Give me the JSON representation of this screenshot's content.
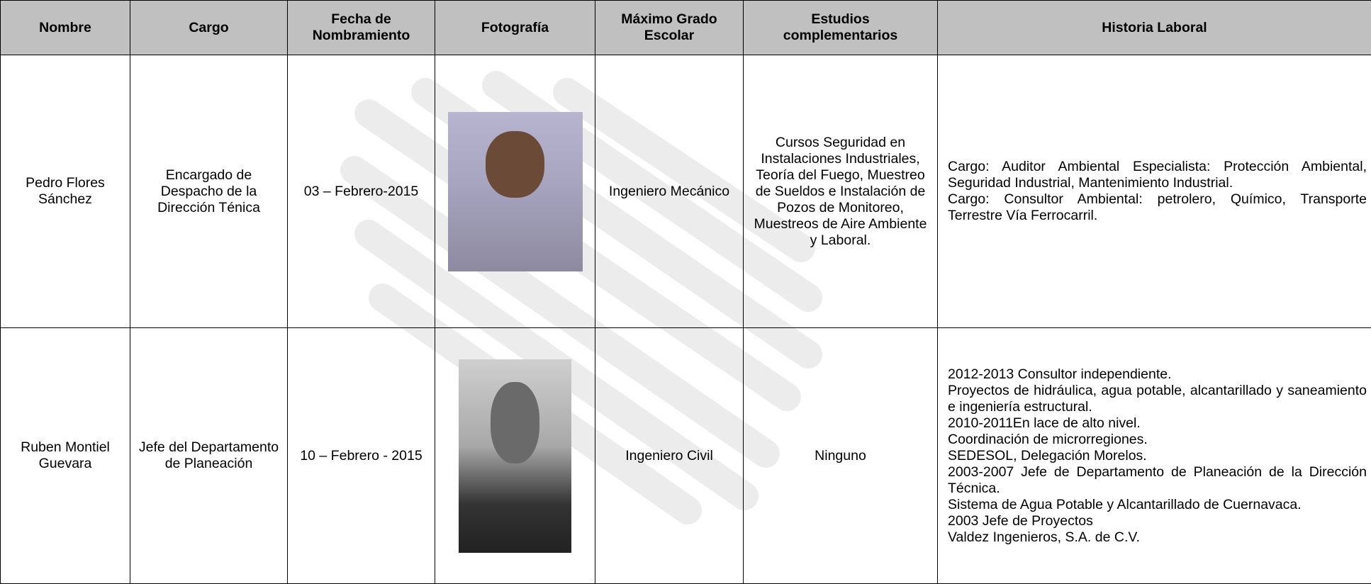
{
  "table": {
    "columns": [
      "Nombre",
      "Cargo",
      "Fecha de Nombramiento",
      "Fotografía",
      "Máximo Grado Escolar",
      "Estudios complementarios",
      "Historia Laboral"
    ],
    "rows": [
      {
        "nombre": "Pedro Flores Sánchez",
        "cargo": "Encargado de Despacho de la Dirección Ténica",
        "fecha": "03 – Febrero-2015",
        "maximo_grado": "Ingeniero Mecánico",
        "estudios": "Cursos Seguridad en Instalaciones Industriales, Teoría del Fuego, Muestreo de Sueldos e Instalación de Pozos de Monitoreo, Muestreos de Aire Ambiente y Laboral.",
        "historia": [
          "Cargo: Auditor Ambiental Especialista: Protección Ambiental, Seguridad Industrial, Mantenimiento Industrial.",
          "Cargo: Consultor Ambiental: petrolero, Químico, Transporte Terrestre Vía Ferrocarril."
        ]
      },
      {
        "nombre": "Ruben Montiel Guevara",
        "cargo": "Jefe del Departamento de Planeación",
        "fecha": "10 – Febrero - 2015",
        "maximo_grado": "Ingeniero Civil",
        "estudios": "Ninguno",
        "historia": [
          "2012-2013 Consultor independiente.",
          "Proyectos de hidráulica, agua potable, alcantarillado y saneamiento e ingeniería estructural.",
          "2010-2011En lace de alto nivel.",
          "Coordinación de microrregiones.",
          "SEDESOL, Delegación Morelos.",
          "2003-2007 Jefe de Departamento de Planeación de la Dirección Técnica.",
          "Sistema de Agua Potable y Alcantarillado de Cuernavaca.",
          "2003 Jefe de Proyectos",
          "Valdez Ingenieros, S.A. de  C.V."
        ]
      }
    ]
  }
}
